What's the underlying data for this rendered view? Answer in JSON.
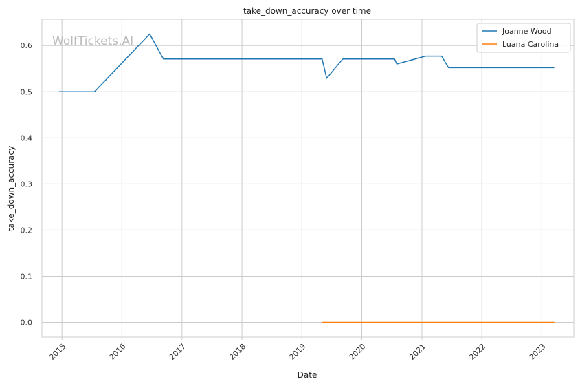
{
  "chart_data": {
    "type": "line",
    "title": "take_down_accuracy over time",
    "xlabel": "Date",
    "ylabel": "take_down_accuracy",
    "watermark": "WolfTickets.AI",
    "x_ticks": [
      "2015",
      "2016",
      "2017",
      "2018",
      "2019",
      "2020",
      "2021",
      "2022",
      "2023"
    ],
    "y_ticks": [
      "0.0",
      "0.1",
      "0.2",
      "0.3",
      "0.4",
      "0.5",
      "0.6"
    ],
    "xlim": [
      "2014-09-01",
      "2023-07-15"
    ],
    "ylim": [
      -0.032,
      0.657
    ],
    "grid": true,
    "legend_position": "top-right",
    "series": [
      {
        "name": "Joanne Wood",
        "color": "#1f77b4",
        "points": [
          [
            "2014-12-13",
            0.5
          ],
          [
            "2015-07-18",
            0.5
          ],
          [
            "2016-06-18",
            0.625
          ],
          [
            "2016-09-10",
            0.571
          ],
          [
            "2019-05-04",
            0.571
          ],
          [
            "2019-06-01",
            0.529
          ],
          [
            "2019-09-07",
            0.571
          ],
          [
            "2020-07-18",
            0.571
          ],
          [
            "2020-08-01",
            0.56
          ],
          [
            "2021-01-23",
            0.577
          ],
          [
            "2021-05-01",
            0.577
          ],
          [
            "2021-06-12",
            0.552
          ],
          [
            "2023-03-18",
            0.552
          ]
        ]
      },
      {
        "name": "Luana Carolina",
        "color": "#ff7f0e",
        "points": [
          [
            "2019-05-04",
            0.0
          ],
          [
            "2023-03-18",
            0.0
          ]
        ]
      }
    ]
  }
}
